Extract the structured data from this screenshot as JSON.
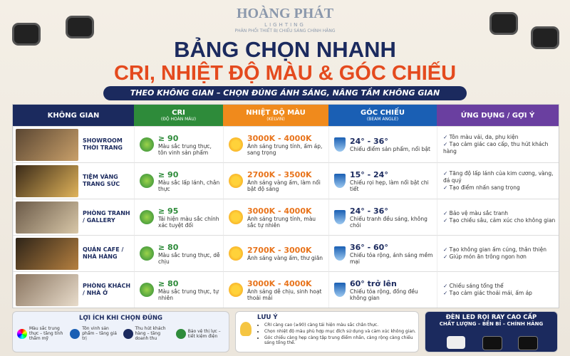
{
  "header": {
    "brand": "HOÀNG PHÁT",
    "brand_sub": "LIGHTING",
    "tagline": "PHÂN PHỐI THIẾT BỊ CHIẾU SÁNG CHÍNH HÃNG",
    "title": "BẢNG CHỌN NHANH",
    "subtitle": "CRI, NHIỆT ĐỘ MÀU & GÓC CHIẾU",
    "banner": "THEO KHÔNG GIAN – CHỌN ĐÚNG ÁNH SÁNG, NÂNG TẦM KHÔNG GIAN"
  },
  "table": {
    "columns": [
      {
        "title": "KHÔNG GIAN"
      },
      {
        "title": "CRI",
        "sub": "(ĐỘ HOÀN MÀU)"
      },
      {
        "title": "NHIỆT ĐỘ MÀU",
        "sub": "(KELVIN)"
      },
      {
        "title": "GÓC CHIẾU",
        "sub": "(BEAM ANGLE)"
      },
      {
        "title": "ỨNG DỤNG / GỢI Ý"
      }
    ],
    "rows": [
      {
        "space": "SHOWROOM THỜI TRANG",
        "cri": "≥ 90",
        "cri_desc": "Màu sắc trung thực, tôn vinh sản phẩm",
        "kelvin": "3000K - 4000K",
        "kelvin_desc": "Ánh sáng trung tính, ấm áp, sang trọng",
        "beam": "24° - 36°",
        "beam_desc": "Chiếu điểm sản phẩm, nổi bật",
        "uses": [
          "Tôn màu vải, da, phụ kiện",
          "Tạo cảm giác cao cấp, thu hút khách hàng"
        ]
      },
      {
        "space": "TIỆM VÀNG TRANG SỨC",
        "cri": "≥ 90",
        "cri_desc": "Màu sắc lấp lánh, chân thực",
        "kelvin": "2700K - 3500K",
        "kelvin_desc": "Ánh sáng vàng ấm, làm nổi bật độ sáng",
        "beam": "15° - 24°",
        "beam_desc": "Chiếu rọi hẹp, làm nổi bật chi tiết",
        "uses": [
          "Tăng độ lấp lánh của kim cương, vàng, đá quý",
          "Tạo điểm nhấn sang trọng"
        ]
      },
      {
        "space": "PHÒNG TRANH / GALLERY",
        "cri": "≥ 95",
        "cri_desc": "Tái hiện màu sắc chính xác tuyệt đối",
        "kelvin": "3000K - 4000K",
        "kelvin_desc": "Ánh sáng trung tính, màu sắc tự nhiên",
        "beam": "24° - 36°",
        "beam_desc": "Chiếu tranh đều sáng, không chói",
        "uses": [
          "Bảo vệ màu sắc tranh",
          "Tạo chiều sâu, cảm xúc cho không gian"
        ]
      },
      {
        "space": "QUÁN CAFE / NHÀ HÀNG",
        "cri": "≥ 80",
        "cri_desc": "Màu sắc trung thực, dễ chịu",
        "kelvin": "2700K - 3000K",
        "kelvin_desc": "Ánh sáng vàng ấm, thư giãn",
        "beam": "36° - 60°",
        "beam_desc": "Chiếu tỏa rộng, ánh sáng mềm mại",
        "uses": [
          "Tạo không gian ấm cúng, thân thiện",
          "Giúp món ăn trông ngon hơn"
        ]
      },
      {
        "space": "PHÒNG KHÁCH / NHÀ Ở",
        "cri": "≥ 80",
        "cri_desc": "Màu sắc trung thực, tự nhiên",
        "kelvin": "3000K - 4000K",
        "kelvin_desc": "Ánh sáng dễ chịu, sinh hoạt thoải mái",
        "beam": "60° trở lên",
        "beam_desc": "Chiếu tỏa rộng, đồng đều không gian",
        "uses": [
          "Chiếu sáng tổng thể",
          "Tạo cảm giác thoải mái, ấm áp"
        ]
      }
    ]
  },
  "benefits": {
    "title": "LỢI ÍCH KHI CHỌN ĐÚNG",
    "items": [
      "Màu sắc trung thực – tăng tính thẩm mỹ",
      "Tôn vinh sản phẩm – tăng giá trị",
      "Thu hút khách hàng – tăng doanh thu",
      "Bảo vệ thị lực – tiết kiệm điện"
    ]
  },
  "note": {
    "title": "LƯU Ý",
    "items": [
      "CRI càng cao (≥90) càng tái hiện màu sắc chân thực.",
      "Chọn nhiệt độ màu phù hợp mục đích sử dụng và cảm xúc không gian.",
      "Góc chiếu càng hẹp càng tập trung điểm nhấn, càng rộng càng chiếu sáng tổng thể."
    ]
  },
  "product": {
    "title": "ĐÈN LED RỌI RAY CAO CẤP",
    "tagline": "CHẤT LƯỢNG – BỀN BỈ – CHÍNH HÃNG"
  }
}
